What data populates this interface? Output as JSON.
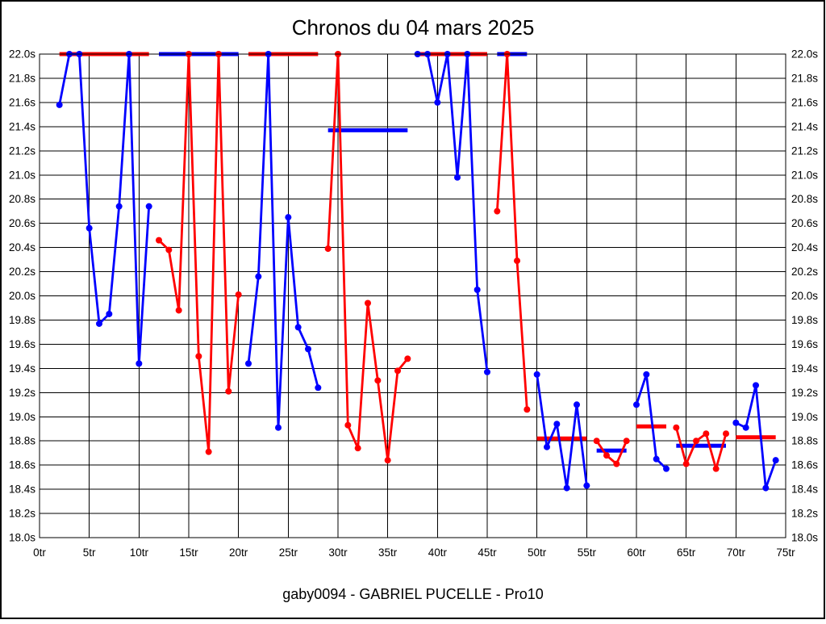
{
  "chart_data": {
    "type": "line",
    "title": "Chronos du 04 mars 2025",
    "subtitle": "gaby0094 - GABRIEL PUCELLE - Pro10",
    "x_unit": "tr",
    "y_unit": "s",
    "xlim": [
      0,
      75
    ],
    "ylim": [
      18.0,
      22.0
    ],
    "x_ticks": [
      0,
      5,
      10,
      15,
      20,
      25,
      30,
      35,
      40,
      45,
      50,
      55,
      60,
      65,
      70,
      75
    ],
    "y_ticks": [
      18.0,
      18.2,
      18.4,
      18.6,
      18.8,
      19.0,
      19.2,
      19.4,
      19.6,
      19.8,
      20.0,
      20.2,
      20.4,
      20.6,
      20.8,
      21.0,
      21.2,
      21.4,
      21.6,
      21.8,
      22.0
    ],
    "grid": true,
    "legend_position": "none",
    "clip_max": 22.0,
    "colors": {
      "blue": "#0000ff",
      "red": "#ff0000"
    },
    "stints": [
      {
        "line_color": "blue",
        "avg_color": "red",
        "average": 22.0,
        "points": [
          [
            2,
            21.58
          ],
          [
            3,
            22.0
          ],
          [
            4,
            22.0
          ],
          [
            5,
            20.56
          ],
          [
            6,
            19.77
          ],
          [
            7,
            19.85
          ],
          [
            8,
            20.74
          ],
          [
            9,
            22.0
          ],
          [
            10,
            19.44
          ],
          [
            11,
            20.74
          ]
        ]
      },
      {
        "line_color": "red",
        "avg_color": "blue",
        "average": 22.0,
        "points": [
          [
            12,
            20.46
          ],
          [
            13,
            20.38
          ],
          [
            14,
            19.88
          ],
          [
            15,
            22.0
          ],
          [
            16,
            19.5
          ],
          [
            17,
            18.71
          ],
          [
            18,
            22.0
          ],
          [
            19,
            19.21
          ],
          [
            20,
            20.01
          ]
        ]
      },
      {
        "line_color": "blue",
        "avg_color": "red",
        "average": 22.0,
        "points": [
          [
            21,
            19.44
          ],
          [
            22,
            20.16
          ],
          [
            23,
            22.0
          ],
          [
            24,
            18.91
          ],
          [
            25,
            20.65
          ],
          [
            26,
            19.74
          ],
          [
            27,
            19.56
          ],
          [
            28,
            19.24
          ]
        ]
      },
      {
        "line_color": "red",
        "avg_color": "blue",
        "average": 21.37,
        "points": [
          [
            29,
            20.39
          ],
          [
            30,
            22.0
          ],
          [
            31,
            18.93
          ],
          [
            32,
            18.74
          ],
          [
            33,
            19.94
          ],
          [
            34,
            19.3
          ],
          [
            35,
            18.64
          ],
          [
            36,
            19.38
          ],
          [
            37,
            19.48
          ]
        ]
      },
      {
        "line_color": "blue",
        "avg_color": "red",
        "average": 22.0,
        "points": [
          [
            38,
            22.0
          ],
          [
            39,
            22.0
          ],
          [
            40,
            21.6
          ],
          [
            41,
            22.0
          ],
          [
            42,
            20.98
          ],
          [
            43,
            22.0
          ],
          [
            44,
            20.05
          ],
          [
            45,
            19.37
          ]
        ]
      },
      {
        "line_color": "red",
        "avg_color": "blue",
        "average": 22.0,
        "points": [
          [
            46,
            20.7
          ],
          [
            47,
            22.0
          ],
          [
            48,
            20.29
          ],
          [
            49,
            19.06
          ]
        ]
      },
      {
        "line_color": "blue",
        "avg_color": "red",
        "average": 18.82,
        "points": [
          [
            50,
            19.35
          ],
          [
            51,
            18.75
          ],
          [
            52,
            18.94
          ],
          [
            53,
            18.41
          ],
          [
            54,
            19.1
          ],
          [
            55,
            18.43
          ]
        ]
      },
      {
        "line_color": "red",
        "avg_color": "blue",
        "average": 18.72,
        "points": [
          [
            56,
            18.8
          ],
          [
            57,
            18.68
          ],
          [
            58,
            18.61
          ],
          [
            59,
            18.8
          ]
        ]
      },
      {
        "line_color": "blue",
        "avg_color": "red",
        "average": 18.92,
        "points": [
          [
            60,
            19.1
          ],
          [
            61,
            19.35
          ],
          [
            62,
            18.65
          ],
          [
            63,
            18.57
          ]
        ]
      },
      {
        "line_color": "red",
        "avg_color": "blue",
        "average": 18.76,
        "points": [
          [
            64,
            18.91
          ],
          [
            65,
            18.61
          ],
          [
            66,
            18.8
          ],
          [
            67,
            18.86
          ],
          [
            68,
            18.57
          ],
          [
            69,
            18.86
          ]
        ]
      },
      {
        "line_color": "blue",
        "avg_color": "red",
        "average": 18.83,
        "points": [
          [
            70,
            18.95
          ],
          [
            71,
            18.91
          ],
          [
            72,
            19.26
          ],
          [
            73,
            18.41
          ],
          [
            74,
            18.64
          ]
        ]
      }
    ]
  }
}
